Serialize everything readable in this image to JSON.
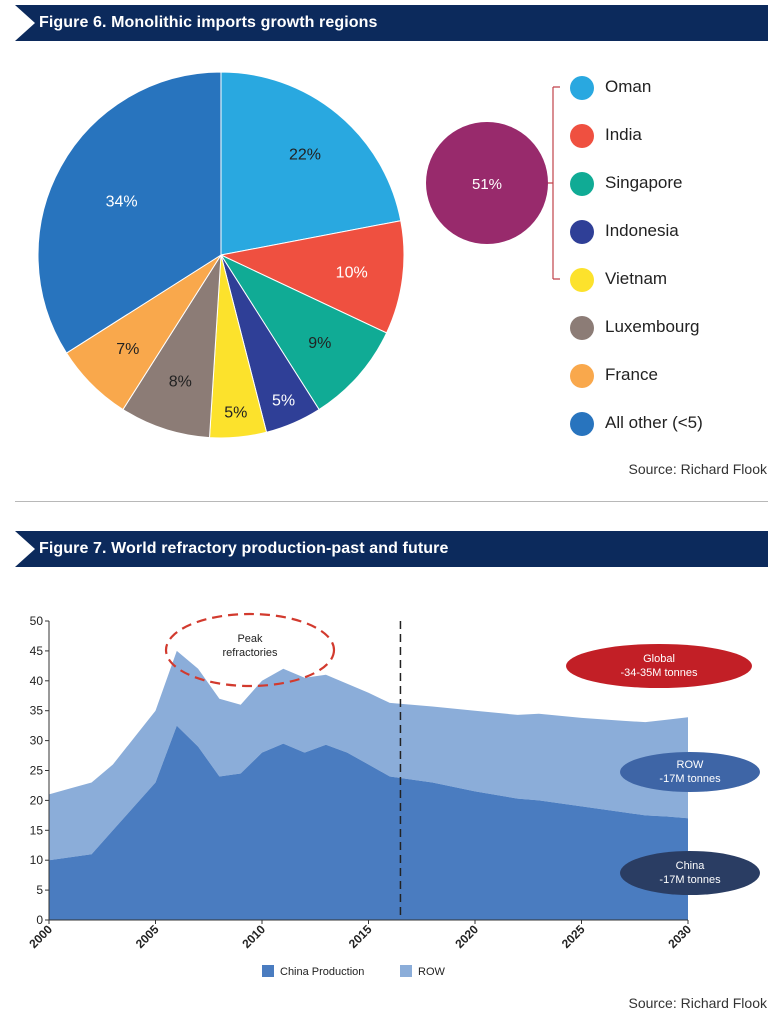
{
  "figure6": {
    "title": "Figure 6. Monolithic imports growth regions",
    "source": "Source: Richard Flook",
    "group_label": "51%",
    "group_color": "#982a6c"
  },
  "figure7": {
    "title": "Figure 7. World refractory production-past and future",
    "source": "Source: Richard Flook",
    "legend": [
      "China Production",
      "ROW"
    ],
    "annotations": {
      "peak": [
        "Peak",
        "refractories"
      ],
      "global": [
        "Global",
        "-34-35M tonnes"
      ],
      "row": [
        "ROW",
        "-17M tonnes"
      ],
      "china": [
        "China",
        "-17M tonnes"
      ]
    }
  },
  "chart_data": [
    {
      "type": "pie",
      "title": "Figure 6. Monolithic imports growth regions",
      "slices": [
        {
          "name": "Oman",
          "value": 22,
          "label": "22%",
          "color": "#29a8e0"
        },
        {
          "name": "India",
          "value": 10,
          "label": "10%",
          "color": "#ef5040"
        },
        {
          "name": "Singapore",
          "value": 9,
          "label": "9%",
          "color": "#10ab95"
        },
        {
          "name": "Indonesia",
          "value": 5,
          "label": "5%",
          "color": "#2f3f97"
        },
        {
          "name": "Vietnam",
          "value": 5,
          "label": "5%",
          "color": "#fce22c"
        },
        {
          "name": "Luxembourg",
          "value": 8,
          "label": "8%",
          "color": "#8c7c76"
        },
        {
          "name": "France",
          "value": 7,
          "label": "7%",
          "color": "#f9a84c"
        },
        {
          "name": "All other (<5)",
          "value": 34,
          "label": "34%",
          "color": "#2874be"
        }
      ],
      "legend": [
        "Oman",
        "India",
        "Singapore",
        "Indonesia",
        "Vietnam",
        "Luxembourg",
        "France",
        "All other (<5)"
      ],
      "grouped_share": {
        "label": "51%",
        "members": [
          "Oman",
          "India",
          "Singapore",
          "Indonesia",
          "Vietnam"
        ]
      }
    },
    {
      "type": "area",
      "title": "Figure 7. World refractory production-past and future",
      "xlabel": "",
      "ylabel": "",
      "xlim": [
        2000,
        2030
      ],
      "ylim": [
        0,
        50
      ],
      "x_ticks": [
        2000,
        2005,
        2010,
        2015,
        2020,
        2025,
        2030
      ],
      "y_ticks": [
        0,
        5,
        10,
        15,
        20,
        25,
        30,
        35,
        40,
        45,
        50
      ],
      "stacked": true,
      "divider_x": 2016.5,
      "series": [
        {
          "name": "China Production",
          "color": "#4a7cc0",
          "x": [
            2000,
            2001,
            2002,
            2003,
            2004,
            2005,
            2006,
            2007,
            2008,
            2009,
            2010,
            2011,
            2012,
            2013,
            2014,
            2015,
            2016,
            2018,
            2020,
            2022,
            2023,
            2025,
            2027,
            2028,
            2029,
            2030
          ],
          "values": [
            10,
            10.5,
            11,
            15,
            19,
            23,
            32.5,
            29,
            24,
            24.5,
            28,
            29.5,
            28,
            29.3,
            28,
            26,
            24,
            23,
            21.5,
            20.3,
            20,
            19,
            18,
            17.5,
            17.3,
            17
          ]
        },
        {
          "name": "ROW",
          "color": "#8badd9",
          "x": [
            2000,
            2001,
            2002,
            2003,
            2004,
            2005,
            2006,
            2007,
            2008,
            2009,
            2010,
            2011,
            2012,
            2013,
            2014,
            2015,
            2016,
            2018,
            2020,
            2022,
            2023,
            2025,
            2027,
            2028,
            2029,
            2030
          ],
          "values": [
            11,
            11.5,
            12,
            11,
            11.5,
            12,
            12.5,
            13,
            13,
            11.5,
            12,
            12.5,
            12.5,
            11.7,
            11.5,
            12,
            12.3,
            12.7,
            13.5,
            14,
            14.5,
            14.8,
            15.3,
            15.6,
            16.2,
            16.9
          ]
        }
      ]
    }
  ]
}
